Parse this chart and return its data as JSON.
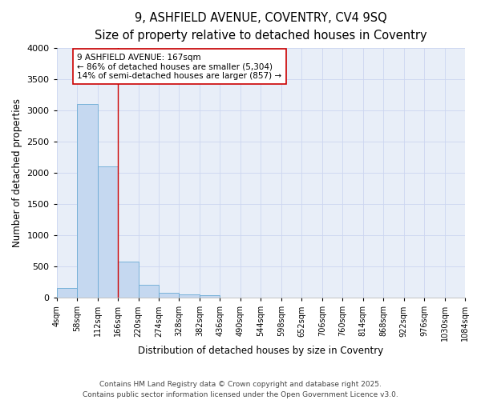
{
  "title1": "9, ASHFIELD AVENUE, COVENTRY, CV4 9SQ",
  "title2": "Size of property relative to detached houses in Coventry",
  "xlabel": "Distribution of detached houses by size in Coventry",
  "ylabel": "Number of detached properties",
  "bar_left_edges": [
    4,
    58,
    112,
    166,
    220,
    274,
    328,
    382,
    436,
    490,
    544,
    598,
    652,
    706,
    760,
    814,
    868,
    922,
    976,
    1030
  ],
  "bar_heights": [
    155,
    3100,
    2100,
    580,
    210,
    80,
    48,
    35,
    0,
    0,
    0,
    0,
    0,
    0,
    0,
    0,
    0,
    0,
    0,
    0
  ],
  "bin_width": 54,
  "bar_color": "#c5d8f0",
  "bar_edge_color": "#6aaad4",
  "grid_color": "#ccd6f0",
  "background_color": "#e8eef8",
  "vline_x": 166,
  "vline_color": "#cc0000",
  "annotation_text": "9 ASHFIELD AVENUE: 167sqm\n← 86% of detached houses are smaller (5,304)\n14% of semi-detached houses are larger (857) →",
  "annotation_box_color": "white",
  "annotation_box_edge": "#cc0000",
  "ylim": [
    0,
    4000
  ],
  "tick_labels": [
    "4sqm",
    "58sqm",
    "112sqm",
    "166sqm",
    "220sqm",
    "274sqm",
    "328sqm",
    "382sqm",
    "436sqm",
    "490sqm",
    "544sqm",
    "598sqm",
    "652sqm",
    "706sqm",
    "760sqm",
    "814sqm",
    "868sqm",
    "922sqm",
    "976sqm",
    "1030sqm",
    "1084sqm"
  ],
  "footnote": "Contains HM Land Registry data © Crown copyright and database right 2025.\nContains public sector information licensed under the Open Government Licence v3.0.",
  "title_fontsize": 10.5,
  "subtitle_fontsize": 9.5,
  "axis_label_fontsize": 8.5,
  "tick_fontsize": 7,
  "annotation_fontsize": 7.5,
  "footnote_fontsize": 6.5
}
